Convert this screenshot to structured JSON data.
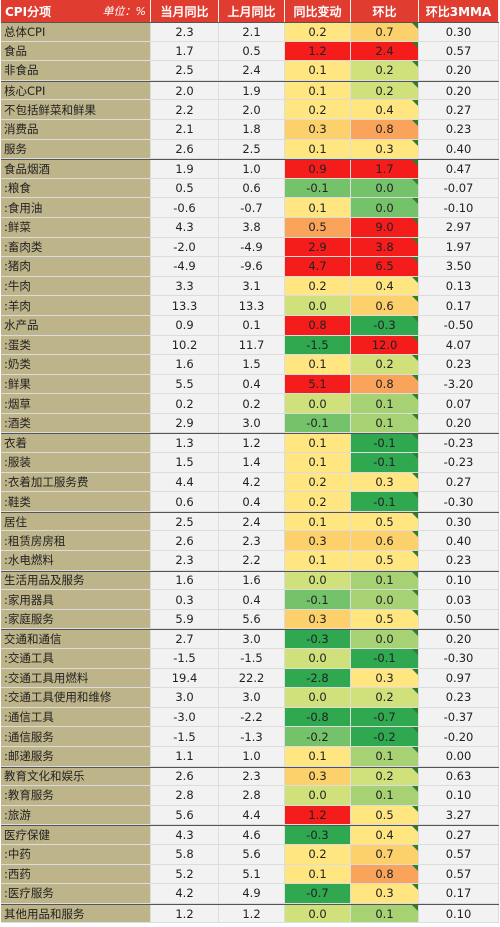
{
  "header": [
    "CPI分项",
    "单位：%",
    "当月同比",
    "上月同比",
    "同比变动",
    "环比",
    "环比3MMA"
  ],
  "rows": [
    {
      "name": "总体CPI",
      "cur": "2.3",
      "prev": "2.1",
      "chg": "0.2",
      "mom": "0.7",
      "mma": "0.30",
      "chg_color": "#ffe680",
      "mom_color": "#fcd06a",
      "grp": true
    },
    {
      "name": "食品",
      "cur": "1.7",
      "prev": "0.5",
      "chg": "1.2",
      "mom": "2.4",
      "mma": "0.57",
      "chg_color": "#f51c1c",
      "mom_color": "#f51c1c"
    },
    {
      "name": "非食品",
      "cur": "2.5",
      "prev": "2.4",
      "chg": "0.1",
      "mom": "0.2",
      "mma": "0.20",
      "chg_color": "#ffe680",
      "mom_color": "#d0e07a"
    },
    {
      "name": "核心CPI",
      "cur": "2.0",
      "prev": "1.9",
      "chg": "0.1",
      "mom": "0.2",
      "mma": "0.20",
      "chg_color": "#ffe680",
      "mom_color": "#d0e07a",
      "grp": true
    },
    {
      "name": "不包括鲜菜和鲜果",
      "cur": "2.2",
      "prev": "2.0",
      "chg": "0.2",
      "mom": "0.4",
      "mma": "0.27",
      "chg_color": "#ffe680",
      "mom_color": "#ffe680"
    },
    {
      "name": "消费品",
      "cur": "2.1",
      "prev": "1.8",
      "chg": "0.3",
      "mom": "0.8",
      "mma": "0.23",
      "chg_color": "#fcd06a",
      "mom_color": "#f9a45a"
    },
    {
      "name": "服务",
      "cur": "2.6",
      "prev": "2.5",
      "chg": "0.1",
      "mom": "0.3",
      "mma": "0.40",
      "chg_color": "#ffe680",
      "mom_color": "#ffe680"
    },
    {
      "name": "食品烟酒",
      "cur": "1.9",
      "prev": "1.0",
      "chg": "0.9",
      "mom": "1.7",
      "mma": "0.47",
      "chg_color": "#f51c1c",
      "mom_color": "#f51c1c",
      "grp": true
    },
    {
      "name": ":粮食",
      "cur": "0.5",
      "prev": "0.6",
      "chg": "-0.1",
      "mom": "0.0",
      "mma": "-0.07",
      "chg_color": "#74c26a",
      "mom_color": "#74c26a"
    },
    {
      "name": ":食用油",
      "cur": "-0.6",
      "prev": "-0.7",
      "chg": "0.1",
      "mom": "0.0",
      "mma": "-0.10",
      "chg_color": "#ffe680",
      "mom_color": "#74c26a"
    },
    {
      "name": ":鲜菜",
      "cur": "4.3",
      "prev": "3.8",
      "chg": "0.5",
      "mom": "9.0",
      "mma": "2.97",
      "chg_color": "#f9a45a",
      "mom_color": "#f51c1c"
    },
    {
      "name": ":畜肉类",
      "cur": "-2.0",
      "prev": "-4.9",
      "chg": "2.9",
      "mom": "3.8",
      "mma": "1.97",
      "chg_color": "#f51c1c",
      "mom_color": "#f51c1c"
    },
    {
      "name": ":猪肉",
      "cur": "-4.9",
      "prev": "-9.6",
      "chg": "4.7",
      "mom": "6.5",
      "mma": "3.50",
      "chg_color": "#f51c1c",
      "mom_color": "#f51c1c"
    },
    {
      "name": ":牛肉",
      "cur": "3.3",
      "prev": "3.1",
      "chg": "0.2",
      "mom": "0.4",
      "mma": "0.13",
      "chg_color": "#ffe680",
      "mom_color": "#ffe680"
    },
    {
      "name": ":羊肉",
      "cur": "13.3",
      "prev": "13.3",
      "chg": "0.0",
      "mom": "0.6",
      "mma": "0.17",
      "chg_color": "#d0e07a",
      "mom_color": "#fcd06a"
    },
    {
      "name": "水产品",
      "cur": "0.9",
      "prev": "0.1",
      "chg": "0.8",
      "mom": "-0.3",
      "mma": "-0.50",
      "chg_color": "#f51c1c",
      "mom_color": "#2fa84f"
    },
    {
      "name": ":蛋类",
      "cur": "10.2",
      "prev": "11.7",
      "chg": "-1.5",
      "mom": "12.0",
      "mma": "4.07",
      "chg_color": "#2fa84f",
      "mom_color": "#f51c1c"
    },
    {
      "name": ":奶类",
      "cur": "1.6",
      "prev": "1.5",
      "chg": "0.1",
      "mom": "0.2",
      "mma": "0.23",
      "chg_color": "#ffe680",
      "mom_color": "#d0e07a"
    },
    {
      "name": ":鲜果",
      "cur": "5.5",
      "prev": "0.4",
      "chg": "5.1",
      "mom": "0.8",
      "mma": "-3.20",
      "chg_color": "#f51c1c",
      "mom_color": "#f9a45a"
    },
    {
      "name": ":烟草",
      "cur": "0.2",
      "prev": "0.2",
      "chg": "0.0",
      "mom": "0.1",
      "mma": "0.07",
      "chg_color": "#d0e07a",
      "mom_color": "#a6d273"
    },
    {
      "name": ":酒类",
      "cur": "2.9",
      "prev": "3.0",
      "chg": "-0.1",
      "mom": "0.1",
      "mma": "0.20",
      "chg_color": "#74c26a",
      "mom_color": "#a6d273"
    },
    {
      "name": "衣着",
      "cur": "1.3",
      "prev": "1.2",
      "chg": "0.1",
      "mom": "-0.1",
      "mma": "-0.23",
      "chg_color": "#ffe680",
      "mom_color": "#2fa84f",
      "grp": true
    },
    {
      "name": ":服装",
      "cur": "1.5",
      "prev": "1.4",
      "chg": "0.1",
      "mom": "-0.1",
      "mma": "-0.23",
      "chg_color": "#ffe680",
      "mom_color": "#2fa84f"
    },
    {
      "name": ":衣着加工服务费",
      "cur": "4.4",
      "prev": "4.2",
      "chg": "0.2",
      "mom": "0.3",
      "mma": "0.27",
      "chg_color": "#ffe680",
      "mom_color": "#ffe680"
    },
    {
      "name": ":鞋类",
      "cur": "0.6",
      "prev": "0.4",
      "chg": "0.2",
      "mom": "-0.1",
      "mma": "-0.30",
      "chg_color": "#ffe680",
      "mom_color": "#2fa84f"
    },
    {
      "name": "居住",
      "cur": "2.5",
      "prev": "2.4",
      "chg": "0.1",
      "mom": "0.5",
      "mma": "0.30",
      "chg_color": "#ffe680",
      "mom_color": "#ffe680",
      "grp": true
    },
    {
      "name": ":租赁房房租",
      "cur": "2.6",
      "prev": "2.3",
      "chg": "0.3",
      "mom": "0.6",
      "mma": "0.40",
      "chg_color": "#fcd06a",
      "mom_color": "#fcd06a"
    },
    {
      "name": ":水电燃料",
      "cur": "2.3",
      "prev": "2.2",
      "chg": "0.1",
      "mom": "0.5",
      "mma": "0.23",
      "chg_color": "#ffe680",
      "mom_color": "#ffe680"
    },
    {
      "name": "生活用品及服务",
      "cur": "1.6",
      "prev": "1.6",
      "chg": "0.0",
      "mom": "0.1",
      "mma": "0.10",
      "chg_color": "#d0e07a",
      "mom_color": "#a6d273",
      "grp": true
    },
    {
      "name": ":家用器具",
      "cur": "0.3",
      "prev": "0.4",
      "chg": "-0.1",
      "mom": "0.0",
      "mma": "0.03",
      "chg_color": "#74c26a",
      "mom_color": "#a6d273"
    },
    {
      "name": ":家庭服务",
      "cur": "5.9",
      "prev": "5.6",
      "chg": "0.3",
      "mom": "0.5",
      "mma": "0.50",
      "chg_color": "#fcd06a",
      "mom_color": "#ffe680"
    },
    {
      "name": "交通和通信",
      "cur": "2.7",
      "prev": "3.0",
      "chg": "-0.3",
      "mom": "0.0",
      "mma": "0.20",
      "chg_color": "#2fa84f",
      "mom_color": "#a6d273",
      "grp": true
    },
    {
      "name": ":交通工具",
      "cur": "-1.5",
      "prev": "-1.5",
      "chg": "0.0",
      "mom": "-0.1",
      "mma": "-0.30",
      "chg_color": "#d0e07a",
      "mom_color": "#2fa84f"
    },
    {
      "name": ":交通工具用燃料",
      "cur": "19.4",
      "prev": "22.2",
      "chg": "-2.8",
      "mom": "0.3",
      "mma": "0.97",
      "chg_color": "#2fa84f",
      "mom_color": "#ffe680"
    },
    {
      "name": ":交通工具使用和维修",
      "cur": "3.0",
      "prev": "3.0",
      "chg": "0.0",
      "mom": "0.2",
      "mma": "0.23",
      "chg_color": "#d0e07a",
      "mom_color": "#d0e07a"
    },
    {
      "name": ":通信工具",
      "cur": "-3.0",
      "prev": "-2.2",
      "chg": "-0.8",
      "mom": "-0.7",
      "mma": "-0.37",
      "chg_color": "#2fa84f",
      "mom_color": "#2fa84f"
    },
    {
      "name": ":通信服务",
      "cur": "-1.5",
      "prev": "-1.3",
      "chg": "-0.2",
      "mom": "-0.2",
      "mma": "-0.20",
      "chg_color": "#74c26a",
      "mom_color": "#2fa84f"
    },
    {
      "name": ":邮递服务",
      "cur": "1.1",
      "prev": "1.0",
      "chg": "0.1",
      "mom": "0.1",
      "mma": "0.00",
      "chg_color": "#ffe680",
      "mom_color": "#a6d273"
    },
    {
      "name": "教育文化和娱乐",
      "cur": "2.6",
      "prev": "2.3",
      "chg": "0.3",
      "mom": "0.2",
      "mma": "0.63",
      "chg_color": "#fcd06a",
      "mom_color": "#d0e07a",
      "grp": true
    },
    {
      "name": ":教育服务",
      "cur": "2.8",
      "prev": "2.8",
      "chg": "0.0",
      "mom": "0.1",
      "mma": "0.10",
      "chg_color": "#d0e07a",
      "mom_color": "#a6d273"
    },
    {
      "name": ":旅游",
      "cur": "5.6",
      "prev": "4.4",
      "chg": "1.2",
      "mom": "0.5",
      "mma": "3.27",
      "chg_color": "#f51c1c",
      "mom_color": "#ffe680"
    },
    {
      "name": "医疗保健",
      "cur": "4.3",
      "prev": "4.6",
      "chg": "-0.3",
      "mom": "0.4",
      "mma": "0.27",
      "chg_color": "#2fa84f",
      "mom_color": "#ffe680",
      "grp": true
    },
    {
      "name": ":中药",
      "cur": "5.8",
      "prev": "5.6",
      "chg": "0.2",
      "mom": "0.7",
      "mma": "0.57",
      "chg_color": "#ffe680",
      "mom_color": "#fcd06a"
    },
    {
      "name": ":西药",
      "cur": "5.2",
      "prev": "5.1",
      "chg": "0.1",
      "mom": "0.8",
      "mma": "0.57",
      "chg_color": "#ffe680",
      "mom_color": "#f9a45a"
    },
    {
      "name": ":医疗服务",
      "cur": "4.2",
      "prev": "4.9",
      "chg": "-0.7",
      "mom": "0.3",
      "mma": "0.17",
      "chg_color": "#2fa84f",
      "mom_color": "#ffe680"
    },
    {
      "name": "其他用品和服务",
      "cur": "1.2",
      "prev": "1.2",
      "chg": "0.0",
      "mom": "0.1",
      "mma": "0.10",
      "chg_color": "#d0e07a",
      "mom_color": "#a6d273",
      "grp": true
    }
  ]
}
